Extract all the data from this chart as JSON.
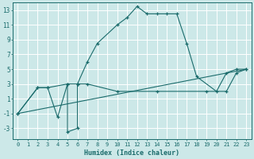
{
  "xlabel": "Humidex (Indice chaleur)",
  "bg_color": "#cce8e8",
  "grid_color": "#ffffff",
  "line_color": "#1a6b6b",
  "xlim": [
    -0.5,
    23.5
  ],
  "ylim": [
    -4.5,
    14.0
  ],
  "yticks": [
    -3,
    -1,
    1,
    3,
    5,
    7,
    9,
    11,
    13
  ],
  "xticks": [
    0,
    1,
    2,
    3,
    4,
    5,
    6,
    7,
    8,
    9,
    10,
    11,
    12,
    13,
    14,
    15,
    16,
    17,
    18,
    19,
    20,
    21,
    22,
    23
  ],
  "line1_x": [
    0,
    2,
    3,
    4,
    5,
    5,
    6,
    6,
    7,
    8,
    10,
    11,
    12,
    13,
    14,
    15,
    16,
    17,
    18,
    20,
    21,
    22,
    23
  ],
  "line1_y": [
    -1,
    2.5,
    2.5,
    -1.5,
    3,
    -3.5,
    -3.0,
    3,
    6,
    8.5,
    11,
    12,
    13.5,
    12.5,
    12.5,
    12.5,
    12.5,
    8.5,
    4,
    2,
    4.5,
    5,
    5
  ],
  "line2_x": [
    0,
    2,
    3,
    5,
    6,
    7,
    10,
    14,
    19,
    21,
    22,
    23
  ],
  "line2_y": [
    -1,
    2.5,
    2.5,
    3,
    3,
    3,
    2,
    2,
    2,
    2,
    4.5,
    5
  ],
  "line3_x": [
    0,
    23
  ],
  "line3_y": [
    -1,
    5
  ],
  "title_fontsize": 7,
  "xlabel_fontsize": 6,
  "tick_fontsize": 5
}
